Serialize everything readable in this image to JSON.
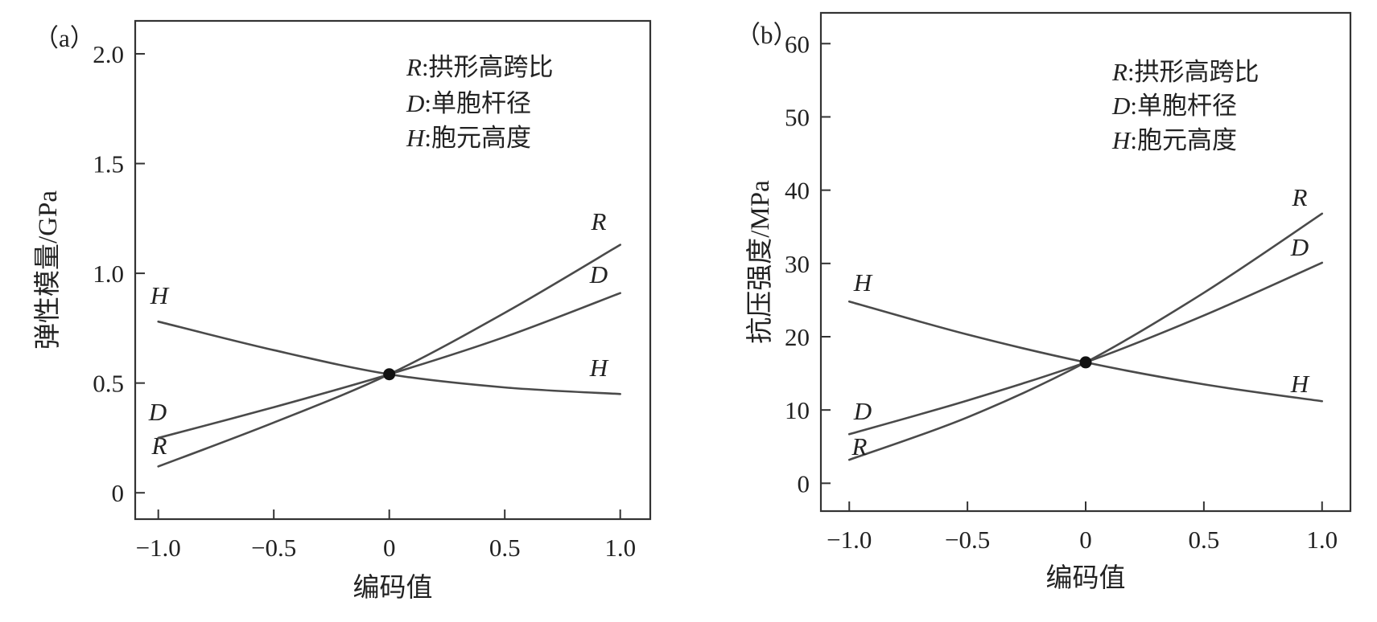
{
  "chart_data": [
    {
      "type": "line",
      "panel_label": "（a）",
      "title": "",
      "xlabel": "编码值",
      "ylabel": "弹性模量/GPa",
      "xlim": [
        -1.1,
        1.13
      ],
      "ylim": [
        -0.12,
        2.15
      ],
      "x_ticks": [
        -1.0,
        -0.5,
        0,
        0.5,
        1.0
      ],
      "x_tick_labels": [
        "−1.0",
        "−0.5",
        "0",
        "0.5",
        "1.0"
      ],
      "y_ticks": [
        0,
        0.5,
        1.0,
        1.5,
        2.0
      ],
      "y_tick_labels": [
        "0",
        "0.5",
        "1.0",
        "1.5",
        "2.0"
      ],
      "grid": false,
      "legend_placement": "top-right",
      "legend": [
        {
          "symbol": "R",
          "text": ":拱形高跨比"
        },
        {
          "symbol": "D",
          "text": ":单胞杆径"
        },
        {
          "symbol": "H",
          "text": ":胞元高度"
        }
      ],
      "center_point": {
        "x": 0,
        "y": 0.54
      },
      "x": [
        -1.0,
        -0.5,
        0,
        0.5,
        1.0
      ],
      "series": [
        {
          "name": "R",
          "values": [
            0.12,
            0.32,
            0.54,
            0.82,
            1.13
          ],
          "label_left": "R",
          "label_right": "R"
        },
        {
          "name": "D",
          "values": [
            0.25,
            0.39,
            0.54,
            0.71,
            0.91
          ],
          "label_left": "D",
          "label_right": "D"
        },
        {
          "name": "H",
          "values": [
            0.78,
            0.65,
            0.54,
            0.48,
            0.45
          ],
          "label_left": "H",
          "label_right": "H"
        }
      ]
    },
    {
      "type": "line",
      "panel_label": "（b）",
      "title": "",
      "xlabel": "编码值",
      "ylabel": "抗压强度/MPa",
      "xlim": [
        -1.12,
        1.12
      ],
      "ylim": [
        -3.8,
        64.2
      ],
      "x_ticks": [
        -1.0,
        -0.5,
        0,
        0.5,
        1.0
      ],
      "x_tick_labels": [
        "−1.0",
        "−0.5",
        "0",
        "0.5",
        "1.0"
      ],
      "y_ticks": [
        0,
        10,
        20,
        30,
        40,
        50,
        60
      ],
      "y_tick_labels": [
        "0",
        "10",
        "20",
        "30",
        "40",
        "50",
        "60"
      ],
      "grid": false,
      "legend_placement": "top-right",
      "legend": [
        {
          "symbol": "R",
          "text": ":拱形高跨比"
        },
        {
          "symbol": "D",
          "text": ":单胞杆径"
        },
        {
          "symbol": "H",
          "text": ":胞元高度"
        }
      ],
      "center_point": {
        "x": 0,
        "y": 16.5
      },
      "x": [
        -1.0,
        -0.5,
        0,
        0.5,
        1.0
      ],
      "series": [
        {
          "name": "R",
          "values": [
            3.2,
            9.0,
            16.5,
            26.0,
            36.8
          ],
          "label_left": "R",
          "label_right": "R"
        },
        {
          "name": "D",
          "values": [
            6.7,
            11.3,
            16.5,
            22.9,
            30.1
          ],
          "label_left": "D",
          "label_right": "D"
        },
        {
          "name": "H",
          "values": [
            24.8,
            20.3,
            16.5,
            13.5,
            11.2
          ],
          "label_left": "H",
          "label_right": "H"
        }
      ]
    }
  ]
}
